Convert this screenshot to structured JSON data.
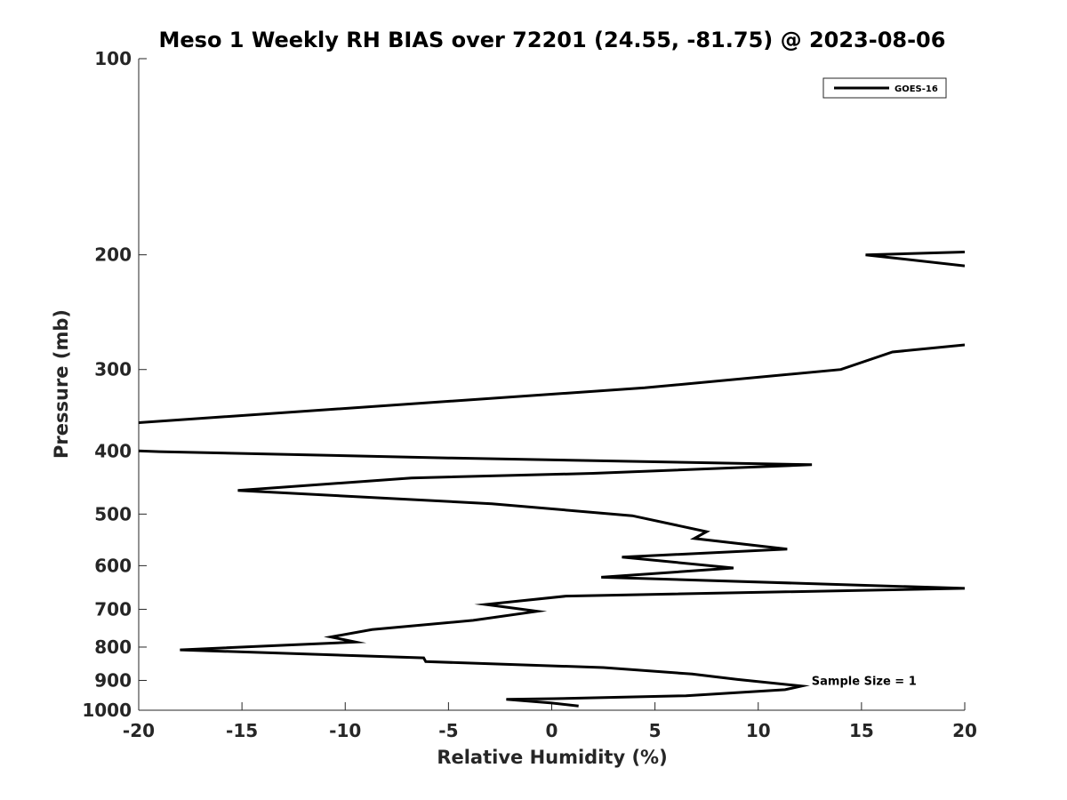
{
  "chart_data": {
    "type": "line",
    "title": "Meso 1 Weekly RH BIAS over 72201 (24.55, -81.75) @ 2023-08-06",
    "xlabel": "Relative Humidity (%)",
    "ylabel": "Pressure (mb)",
    "xlim": [
      -20,
      20
    ],
    "ylim": [
      100,
      1000
    ],
    "yscale": "log",
    "grid": false,
    "legend_position": "top-right",
    "xticks": [
      -20,
      -15,
      -10,
      -5,
      0,
      5,
      10,
      15,
      20
    ],
    "xtick_labels": [
      "-20",
      "-15",
      "-10",
      "-5",
      "0",
      "5",
      "10",
      "15",
      "20"
    ],
    "yticks": [
      100,
      200,
      300,
      400,
      500,
      600,
      700,
      800,
      900,
      1000
    ],
    "ytick_labels": [
      "100",
      "200",
      "300",
      "400",
      "500",
      "600",
      "700",
      "800",
      "900",
      "1000"
    ],
    "annotation": {
      "text": "Sample Size = 1",
      "x": 12.5,
      "y": 900
    },
    "series": [
      {
        "name": "GOES-16",
        "color": "#000000",
        "segments": [
          [
            [
              20,
              198
            ],
            [
              15.2,
              200
            ],
            [
              20,
              208
            ]
          ],
          [
            [
              20,
              275
            ],
            [
              16.5,
              282
            ],
            [
              14,
              300
            ],
            [
              4.5,
              320
            ],
            [
              -20,
              362
            ]
          ],
          [
            [
              -20,
              400
            ],
            [
              -19,
              401
            ],
            [
              -5,
              410
            ],
            [
              12.6,
              420
            ],
            [
              2,
              433
            ],
            [
              -6.8,
              440
            ],
            [
              -15.2,
              460
            ],
            [
              -2.9,
              482
            ],
            [
              3.9,
              503
            ],
            [
              7.5,
              532
            ],
            [
              6.9,
              545
            ],
            [
              11.4,
              566
            ],
            [
              3.4,
              582
            ],
            [
              8.8,
              605
            ],
            [
              2.4,
              625
            ],
            [
              20,
              650
            ],
            [
              0.7,
              668
            ],
            [
              -3.2,
              688
            ],
            [
              -0.7,
              705
            ],
            [
              -3.8,
              728
            ],
            [
              -8.7,
              752
            ],
            [
              -10.7,
              772
            ],
            [
              -9.5,
              786
            ],
            [
              -18,
              808
            ],
            [
              -6.2,
              831
            ],
            [
              -6.1,
              842
            ],
            [
              2.5,
              860
            ],
            [
              6.8,
              880
            ],
            [
              9,
              897
            ],
            [
              12.1,
              918
            ],
            [
              11.3,
              930
            ],
            [
              6.5,
              950
            ],
            [
              0.1,
              960
            ],
            [
              -2.2,
              962
            ],
            [
              0,
              975
            ],
            [
              1.3,
              985
            ]
          ]
        ]
      }
    ]
  }
}
